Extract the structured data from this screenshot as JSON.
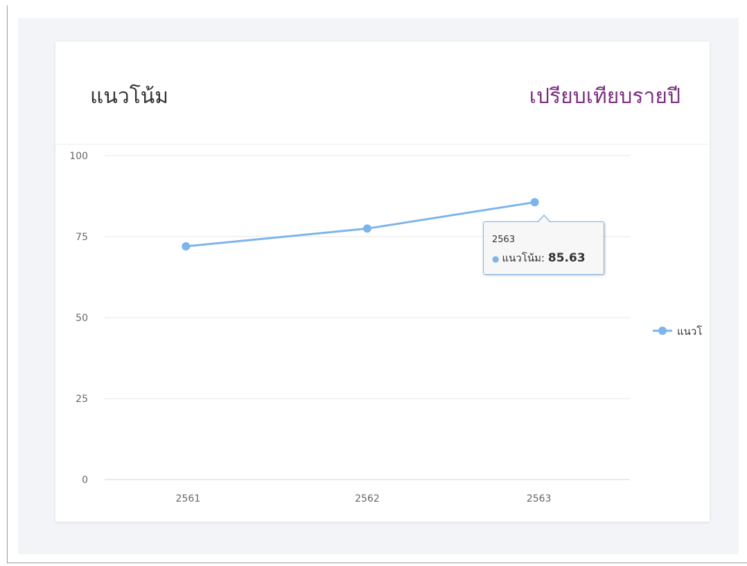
{
  "card": {
    "title": "แนวโน้ม",
    "compare_link": "เปรียบเทียบรายปี"
  },
  "colors": {
    "series": "#7cb5ec",
    "link": "#7b2d80",
    "grid": "#e6e6e6"
  },
  "chart_data": {
    "type": "line",
    "categories": [
      "2561",
      "2562",
      "2563"
    ],
    "series": [
      {
        "name": "แนวโน้ม",
        "values": [
          72,
          77.5,
          85.63
        ]
      }
    ],
    "yticks": [
      "0",
      "25",
      "50",
      "75",
      "100"
    ],
    "ylim": [
      0,
      100
    ],
    "grid": true,
    "legend": {
      "placement": "right",
      "label": "แนวโ"
    }
  },
  "tooltip": {
    "header": "2563",
    "series_label": "แนวโน้ม:",
    "value": "85.63"
  }
}
